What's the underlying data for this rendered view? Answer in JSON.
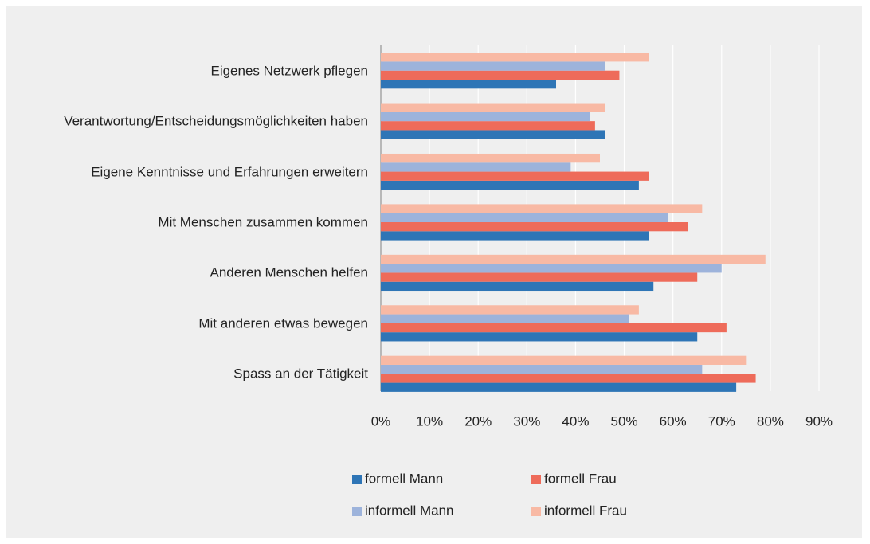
{
  "chart_data": {
    "type": "bar",
    "orientation": "horizontal",
    "categories": [
      "Eigenes Netzwerk pflegen",
      "Verantwortung/Entscheidungsmöglichkeiten haben",
      "Eigene Kenntnisse und Erfahrungen erweitern",
      "Mit Menschen zusammen kommen",
      "Anderen Menschen helfen",
      "Mit anderen etwas bewegen",
      "Spass an der Tätigkeit"
    ],
    "series": [
      {
        "name": "formell Mann",
        "color": "#2e75b6",
        "values": [
          36,
          46,
          53,
          55,
          56,
          65,
          73
        ]
      },
      {
        "name": "formell Frau",
        "color": "#ee6b5a",
        "values": [
          49,
          44,
          55,
          63,
          65,
          71,
          77
        ]
      },
      {
        "name": "informell Mann",
        "color": "#9db3db",
        "values": [
          46,
          43,
          39,
          59,
          70,
          51,
          66
        ]
      },
      {
        "name": "informell Frau",
        "color": "#f8b9a4",
        "values": [
          55,
          46,
          45,
          66,
          79,
          53,
          75
        ]
      }
    ],
    "xlim": [
      0,
      90
    ],
    "xticks": [
      {
        "value": 0,
        "label": "0%"
      },
      {
        "value": 10,
        "label": "10%"
      },
      {
        "value": 20,
        "label": "20%"
      },
      {
        "value": 30,
        "label": "30%"
      },
      {
        "value": 40,
        "label": "40%"
      },
      {
        "value": 50,
        "label": "50%"
      },
      {
        "value": 60,
        "label": "60%"
      },
      {
        "value": 70,
        "label": "70%"
      },
      {
        "value": 80,
        "label": "80%"
      },
      {
        "value": 90,
        "label": "90%"
      }
    ],
    "grid": true
  }
}
